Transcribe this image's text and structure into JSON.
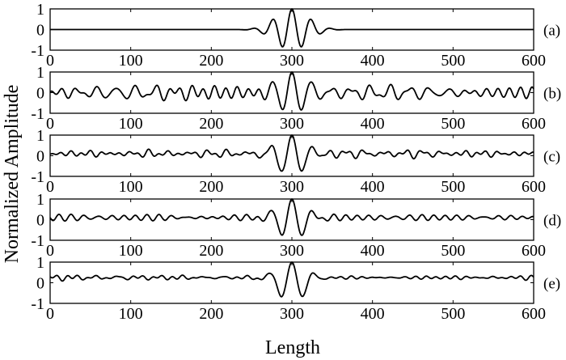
{
  "chart_data": {
    "type": "line",
    "ylabel": "Normalized  Amplitude",
    "xlabel": "Length",
    "xlim": [
      0,
      600
    ],
    "ylim": [
      -1,
      1
    ],
    "x_ticks": [
      "0",
      "100",
      "200",
      "300",
      "400",
      "500",
      "600"
    ],
    "y_ticks": [
      "1",
      "0",
      "-1"
    ],
    "grid": false,
    "panels": [
      {
        "label": "(a)",
        "center": 300,
        "period": 24,
        "envelope_width": 20,
        "baseline": 0.0,
        "background_noise": 0.0
      },
      {
        "label": "(b)",
        "center": 300,
        "period": 24,
        "envelope_width": 20,
        "baseline": 0.0,
        "background_noise": 0.35
      },
      {
        "label": "(c)",
        "center": 300,
        "period": 26,
        "envelope_width": 18,
        "baseline": 0.1,
        "background_noise": 0.22
      },
      {
        "label": "(d)",
        "center": 300,
        "period": 26,
        "envelope_width": 18,
        "baseline": 0.1,
        "background_noise": 0.18
      },
      {
        "label": "(e)",
        "center": 300,
        "period": 28,
        "envelope_width": 17,
        "baseline": 0.25,
        "background_noise": 0.12
      }
    ]
  }
}
